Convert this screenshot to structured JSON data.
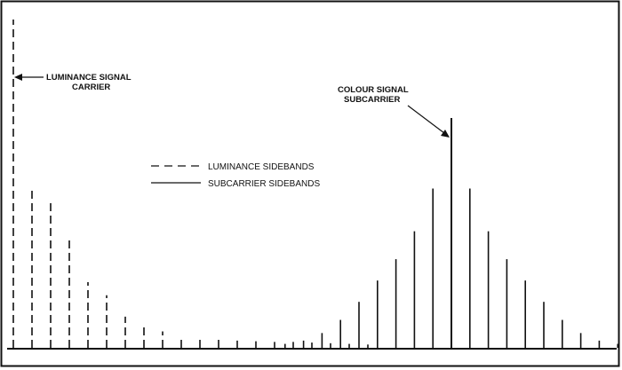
{
  "diagram": {
    "annotations": {
      "luminance_carrier": {
        "line1": "LUMINANCE SIGNAL",
        "line2": "CARRIER"
      },
      "colour_subcarrier": {
        "line1": "COLOUR SIGNAL",
        "line2": "SUBCARRIER"
      }
    },
    "legend": {
      "dashed": "LUMINANCE SIDEBANDS",
      "solid": "SUBCARRIER SIDEBANDS"
    },
    "luminance_levels": [
      1.0,
      0.49,
      0.45,
      0.33,
      0.2,
      0.16,
      0.095,
      0.065,
      0.05,
      0.035,
      0.03,
      0.025,
      0.022,
      0.02,
      0.018,
      0.018,
      0.016,
      0.014,
      0.012,
      0.01
    ],
    "subcarrier_levels": [
      0.012,
      0.022,
      0.045,
      0.085,
      0.14,
      0.205,
      0.27,
      0.355,
      0.485,
      0.7,
      0.485,
      0.355,
      0.27,
      0.205,
      0.14,
      0.085,
      0.045,
      0.022,
      0.012
    ],
    "colors": {
      "ink": "#111111",
      "background": "#ffffff"
    }
  }
}
